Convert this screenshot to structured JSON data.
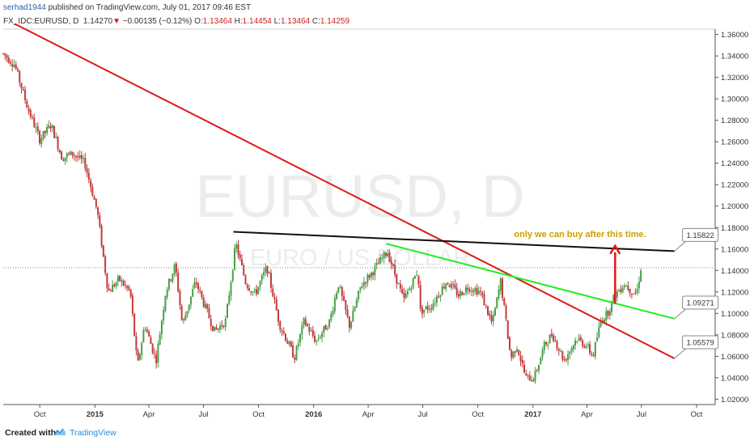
{
  "header": {
    "author": "serhad1944",
    "published_text": " published on TradingView.com, July 01, 2017 09:46 EST",
    "symbol": "FX_IDC:EURUSD, D",
    "last_price": "1.14270",
    "change": "−0.00135 (−0.12%)",
    "o_label": "O:",
    "o_value": "1.13464",
    "h_label": "H:",
    "h_value": "1.14454",
    "l_label": "L:",
    "l_value": "1.13464",
    "c_label": "C:",
    "c_value": "1.14259"
  },
  "watermark": {
    "symbol": "EURUSD, D",
    "name": "EURO / US DOLLAR"
  },
  "annotation": "only we can buy after this time.",
  "footer": {
    "created_with": "Created with",
    "brand": "TradingView"
  },
  "colors": {
    "up_candle": "#4a9e4a",
    "down_candle": "#c23a3a",
    "red_trendline": "#e01818",
    "black_trendline": "#111111",
    "green_trendline": "#22ee22",
    "annotation_text": "#c8a000",
    "arrow": "#e01818",
    "price_line": "#6ea36e"
  },
  "chart_data": {
    "type": "candlestick",
    "x_start": "2014-08-01",
    "x_end": "2017-11-01",
    "ylim": [
      1.015,
      1.365
    ],
    "grid": false,
    "x_ticks": [
      "Oct",
      "2015",
      "Apr",
      "Jul",
      "Oct",
      "2016",
      "Apr",
      "Jul",
      "Oct",
      "2017",
      "Apr",
      "Jul",
      "Oct"
    ],
    "y_ticks": [
      "1.36000",
      "1.34000",
      "1.32000",
      "1.30000",
      "1.28000",
      "1.26000",
      "1.24000",
      "1.22000",
      "1.20000",
      "1.18000",
      "1.16000",
      "1.14000",
      "1.12000",
      "1.10000",
      "1.08000",
      "1.06000",
      "1.04000",
      "1.02000"
    ],
    "current_price": "1.14259",
    "price_path": [
      [
        "2014-08-01",
        1.342
      ],
      [
        "2014-08-20",
        1.332
      ],
      [
        "2014-09-10",
        1.293
      ],
      [
        "2014-10-01",
        1.262
      ],
      [
        "2014-10-20",
        1.276
      ],
      [
        "2014-11-07",
        1.245
      ],
      [
        "2014-11-25",
        1.249
      ],
      [
        "2014-12-15",
        1.24
      ],
      [
        "2015-01-05",
        1.195
      ],
      [
        "2015-01-23",
        1.12
      ],
      [
        "2015-02-10",
        1.132
      ],
      [
        "2015-03-01",
        1.12
      ],
      [
        "2015-03-13",
        1.05
      ],
      [
        "2015-03-25",
        1.09
      ],
      [
        "2015-04-13",
        1.056
      ],
      [
        "2015-04-29",
        1.12
      ],
      [
        "2015-05-15",
        1.145
      ],
      [
        "2015-05-27",
        1.089
      ],
      [
        "2015-06-18",
        1.13
      ],
      [
        "2015-07-01",
        1.11
      ],
      [
        "2015-07-20",
        1.083
      ],
      [
        "2015-08-07",
        1.093
      ],
      [
        "2015-08-24",
        1.165
      ],
      [
        "2015-09-10",
        1.128
      ],
      [
        "2015-09-25",
        1.118
      ],
      [
        "2015-10-15",
        1.143
      ],
      [
        "2015-11-05",
        1.09
      ],
      [
        "2015-11-30",
        1.059
      ],
      [
        "2015-12-16",
        1.093
      ],
      [
        "2016-01-05",
        1.074
      ],
      [
        "2016-01-28",
        1.093
      ],
      [
        "2016-02-11",
        1.128
      ],
      [
        "2016-03-01",
        1.088
      ],
      [
        "2016-03-20",
        1.126
      ],
      [
        "2016-04-10",
        1.14
      ],
      [
        "2016-05-03",
        1.158
      ],
      [
        "2016-05-30",
        1.112
      ],
      [
        "2016-06-23",
        1.14
      ],
      [
        "2016-06-27",
        1.102
      ],
      [
        "2016-07-15",
        1.107
      ],
      [
        "2016-08-10",
        1.13
      ],
      [
        "2016-08-30",
        1.117
      ],
      [
        "2016-09-15",
        1.125
      ],
      [
        "2016-10-05",
        1.12
      ],
      [
        "2016-10-25",
        1.09
      ],
      [
        "2016-11-08",
        1.13
      ],
      [
        "2016-11-25",
        1.058
      ],
      [
        "2016-12-05",
        1.07
      ],
      [
        "2016-12-20",
        1.04
      ],
      [
        "2017-01-03",
        1.04
      ],
      [
        "2017-01-20",
        1.07
      ],
      [
        "2017-02-02",
        1.081
      ],
      [
        "2017-02-22",
        1.056
      ],
      [
        "2017-03-15",
        1.077
      ],
      [
        "2017-03-31",
        1.07
      ],
      [
        "2017-04-11",
        1.06
      ],
      [
        "2017-04-24",
        1.093
      ],
      [
        "2017-05-05",
        1.1
      ],
      [
        "2017-05-18",
        1.117
      ],
      [
        "2017-06-02",
        1.128
      ],
      [
        "2017-06-16",
        1.12
      ],
      [
        "2017-06-23",
        1.119
      ],
      [
        "2017-06-30",
        1.1426
      ]
    ],
    "trendlines": [
      {
        "color": "red",
        "from": [
          "2014-08-20",
          1.37
        ],
        "to": [
          "2017-08-25",
          1.058
        ],
        "end_label": "1.05579"
      },
      {
        "color": "black",
        "from": [
          "2015-08-20",
          1.176
        ],
        "to": [
          "2017-08-25",
          1.158
        ],
        "end_label": "1.15822"
      },
      {
        "color": "green",
        "from": [
          "2016-05-01",
          1.165
        ],
        "to": [
          "2017-08-25",
          1.095
        ],
        "end_label": "1.09271"
      }
    ],
    "arrow": {
      "date": "2017-05-18",
      "from": 1.109,
      "to": 1.163
    },
    "annotation_position": "above black trendline, upper right"
  }
}
